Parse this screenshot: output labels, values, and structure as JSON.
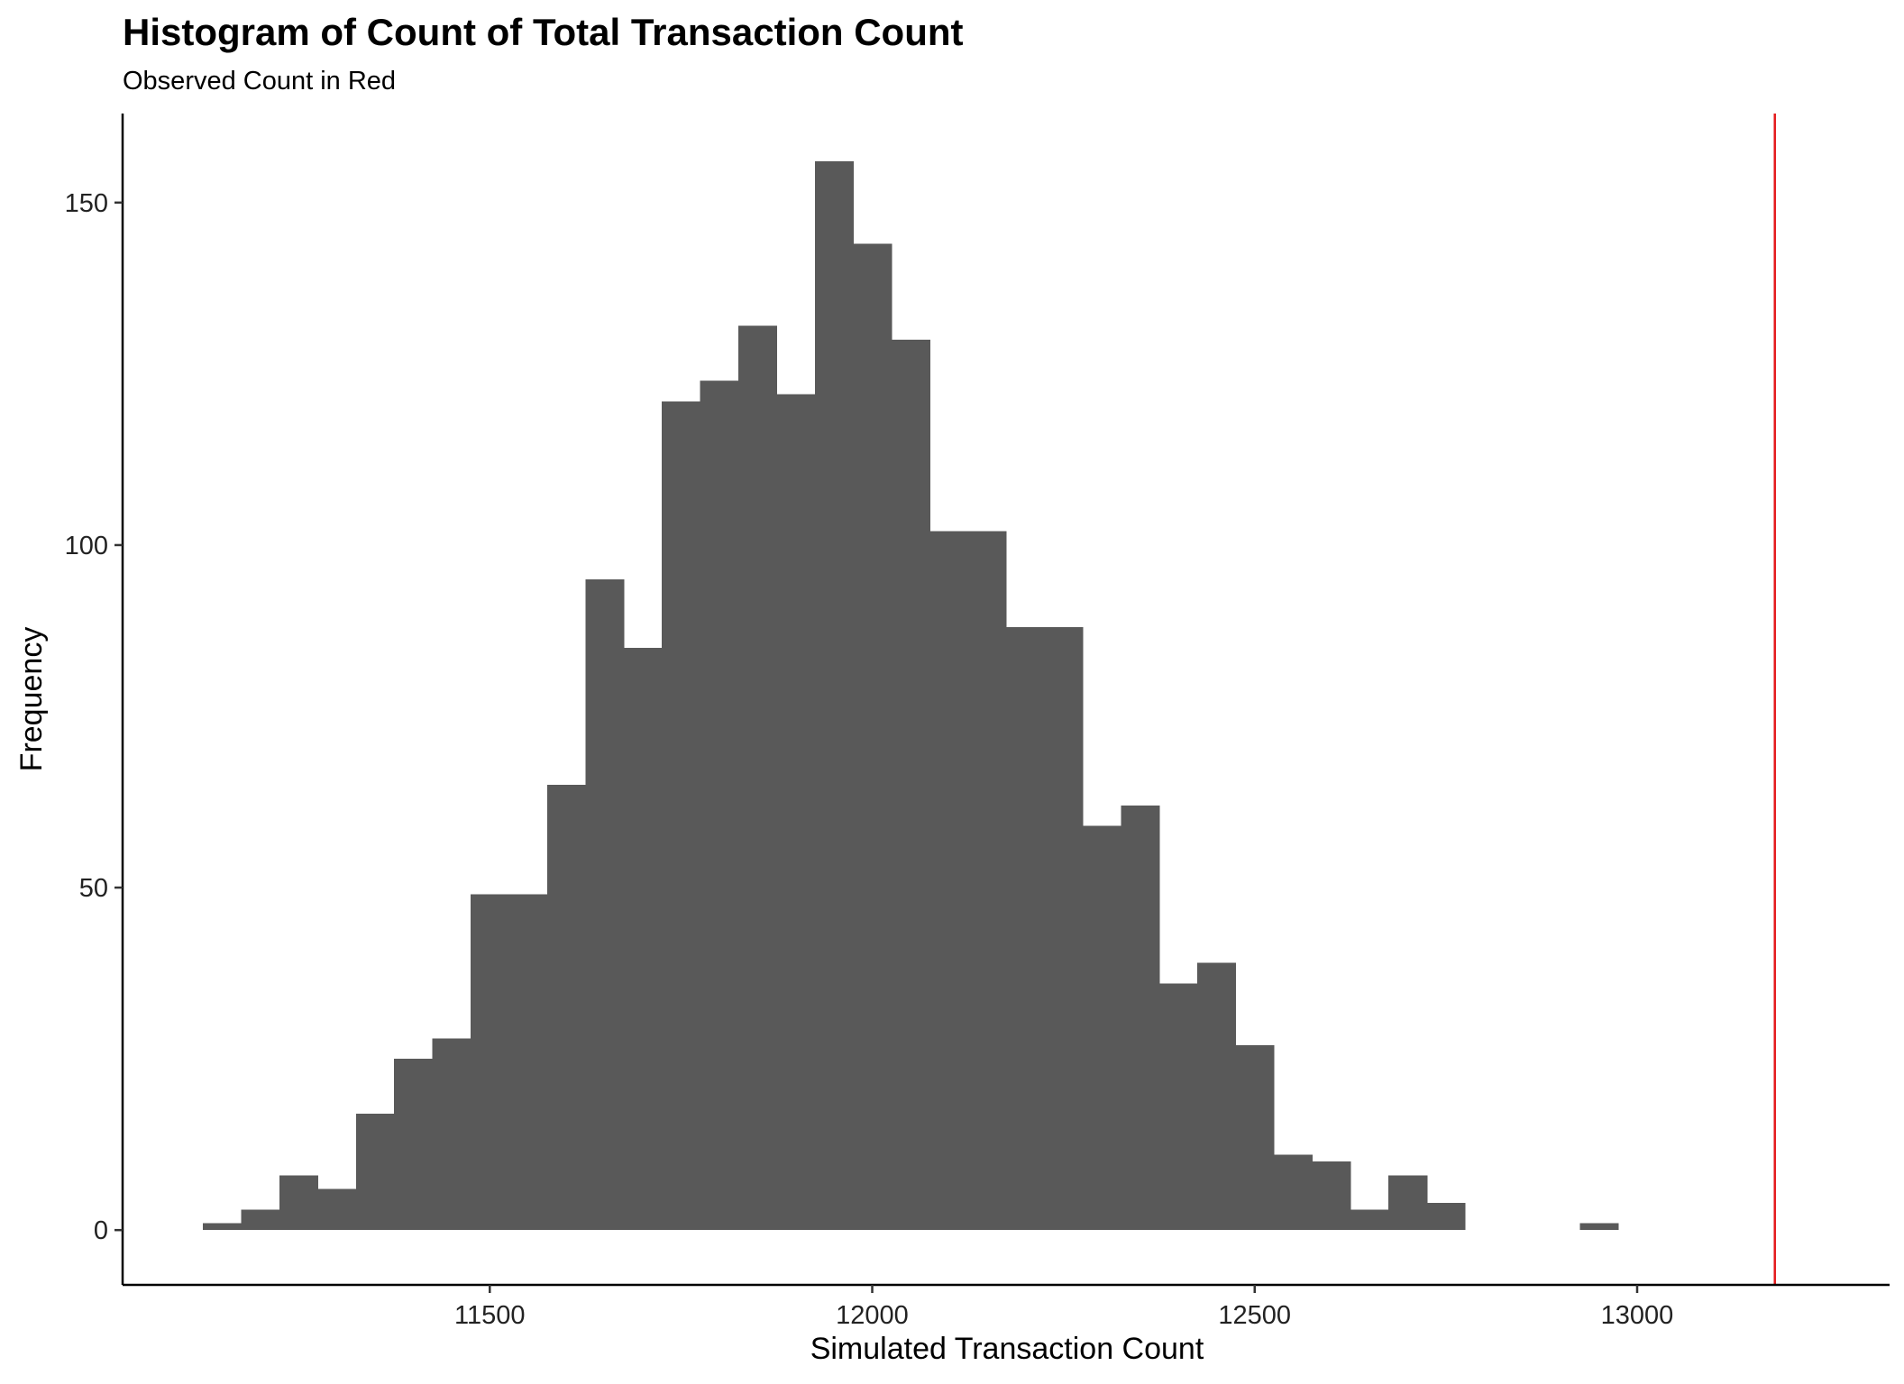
{
  "chart_data": {
    "type": "histogram",
    "title": "Histogram of Count of Total Transaction Count",
    "subtitle": "Observed Count in Red",
    "xlabel": "Simulated Transaction Count",
    "ylabel": "Frequency",
    "xlim": [
      11020,
      13330
    ],
    "ylim": [
      -8,
      163
    ],
    "x_ticks": [
      11500,
      12000,
      12500,
      13000
    ],
    "y_ticks": [
      0,
      50,
      100,
      150
    ],
    "bin_width": 50,
    "bins_start": 11125,
    "counts": [
      1,
      3,
      8,
      6,
      17,
      25,
      28,
      49,
      49,
      65,
      95,
      85,
      121,
      124,
      132,
      122,
      156,
      144,
      130,
      102,
      102,
      88,
      88,
      59,
      62,
      36,
      39,
      27,
      11,
      10,
      3,
      8,
      4,
      0,
      0,
      0,
      1
    ],
    "observed_value": 13180,
    "bar_color": "#595959",
    "observed_line_color": "#e41a1c",
    "grid": false
  }
}
